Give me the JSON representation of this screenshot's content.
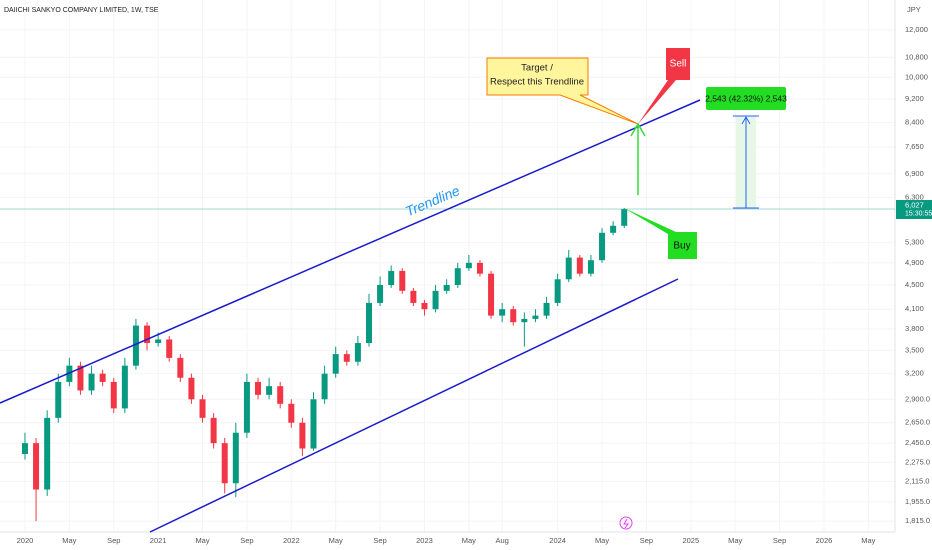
{
  "chart_data": {
    "type": "candlestick",
    "title": "DAIICHI SANKYO COMPANY LIMITED, 1W, TSE",
    "currency": "JPY",
    "log_scale": true,
    "up_color": "#089981",
    "down_color": "#f23645",
    "x": [
      0,
      1,
      2,
      3,
      4,
      5,
      6,
      7,
      8,
      9,
      10,
      11,
      12,
      13,
      14,
      15,
      16,
      17,
      18,
      19,
      20,
      21,
      22,
      23,
      24,
      25,
      26,
      27,
      28,
      29,
      30,
      31,
      32,
      33,
      34,
      35,
      36,
      37,
      38,
      39,
      40,
      41,
      42,
      43,
      44,
      45,
      46,
      47,
      48,
      49,
      50,
      51,
      52,
      53,
      54
    ],
    "open": [
      2350,
      2450,
      2050,
      2700,
      3100,
      3300,
      3000,
      3200,
      3100,
      2800,
      3300,
      3850,
      3600,
      3650,
      3400,
      3150,
      2900,
      2700,
      2450,
      2100,
      2550,
      3100,
      2950,
      3050,
      2850,
      2650,
      2400,
      2900,
      3200,
      3450,
      3350,
      3600,
      4200,
      4500,
      4750,
      4400,
      4200,
      4100,
      4400,
      4500,
      4800,
      4900,
      4700,
      4000,
      4100,
      3900,
      3950,
      4000,
      4200,
      4600,
      5000,
      4700,
      4950,
      5500,
      5650
    ],
    "high": [
      2550,
      2500,
      2780,
      3200,
      3400,
      3350,
      3300,
      3250,
      3150,
      3400,
      3950,
      3900,
      3750,
      3700,
      3450,
      3200,
      2950,
      2750,
      2500,
      2650,
      3200,
      3150,
      3150,
      3100,
      2900,
      2700,
      2980,
      3300,
      3550,
      3500,
      3700,
      4350,
      4650,
      4850,
      4800,
      4450,
      4250,
      4500,
      4600,
      4900,
      5050,
      4950,
      4750,
      4200,
      4150,
      4050,
      4100,
      4300,
      4700,
      5150,
      5050,
      5050,
      5600,
      5750,
      6050
    ],
    "low": [
      2300,
      1815,
      2000,
      2650,
      3050,
      2950,
      2950,
      3050,
      2750,
      2750,
      3250,
      3500,
      3550,
      3350,
      3100,
      2850,
      2650,
      2400,
      2020,
      1990,
      2500,
      2900,
      2900,
      2800,
      2600,
      2330,
      2380,
      2850,
      3150,
      3300,
      3300,
      3550,
      4150,
      4450,
      4350,
      4150,
      4000,
      4050,
      4350,
      4450,
      4750,
      4650,
      3950,
      3900,
      3850,
      3550,
      3900,
      3950,
      4150,
      4550,
      4650,
      4650,
      4900,
      5450,
      5600
    ],
    "close": [
      2450,
      2050,
      2700,
      3100,
      3300,
      3000,
      3200,
      3100,
      2800,
      3300,
      3850,
      3600,
      3650,
      3400,
      3150,
      2900,
      2700,
      2450,
      2100,
      2550,
      3100,
      2950,
      3050,
      2850,
      2650,
      2400,
      2900,
      3200,
      3450,
      3350,
      3600,
      4200,
      4500,
      4750,
      4400,
      4200,
      4100,
      4400,
      4500,
      4800,
      4900,
      4700,
      4000,
      4100,
      3900,
      3950,
      4000,
      4200,
      4600,
      5000,
      4700,
      4950,
      5500,
      5650,
      6027
    ],
    "price_label": "6,027",
    "countdown": "15:30:55",
    "xlim": [
      -2.25,
      78.4
    ],
    "xticks": [
      {
        "value": 0,
        "label": "2020"
      },
      {
        "value": 4,
        "label": "May"
      },
      {
        "value": 8,
        "label": "Sep"
      },
      {
        "value": 12,
        "label": "2021"
      },
      {
        "value": 16,
        "label": "May"
      },
      {
        "value": 20,
        "label": "Sep"
      },
      {
        "value": 24,
        "label": "2022"
      },
      {
        "value": 28,
        "label": "May"
      },
      {
        "value": 32,
        "label": "Sep"
      },
      {
        "value": 36,
        "label": "2023"
      },
      {
        "value": 40,
        "label": "May"
      },
      {
        "value": 43,
        "label": "Aug"
      },
      {
        "value": 48,
        "label": "2024"
      },
      {
        "value": 52,
        "label": "May"
      },
      {
        "value": 56,
        "label": "Sep"
      },
      {
        "value": 60,
        "label": "2025"
      },
      {
        "value": 64,
        "label": "May"
      },
      {
        "value": 68,
        "label": "Sep"
      },
      {
        "value": 72,
        "label": "2026"
      },
      {
        "value": 76,
        "label": "May"
      }
    ],
    "ylim": [
      1741,
      13460
    ],
    "yticks": [
      {
        "value": 12000,
        "label": "12,000"
      },
      {
        "value": 10800,
        "label": "10,800"
      },
      {
        "value": 10000,
        "label": "10,000"
      },
      {
        "value": 9200,
        "label": "9,200"
      },
      {
        "value": 8400,
        "label": "8,400"
      },
      {
        "value": 7650,
        "label": "7,650"
      },
      {
        "value": 6900,
        "label": "6,900"
      },
      {
        "value": 6300,
        "label": "6,300"
      },
      {
        "value": 5300,
        "label": "5,300"
      },
      {
        "value": 4900,
        "label": "4,900"
      },
      {
        "value": 4500,
        "label": "4,500"
      },
      {
        "value": 4100,
        "label": "4,100"
      },
      {
        "value": 3800,
        "label": "3,800"
      },
      {
        "value": 3500,
        "label": "3,500"
      },
      {
        "value": 3200,
        "label": "3,200"
      },
      {
        "value": 2900,
        "label": "2,900.0"
      },
      {
        "value": 2650,
        "label": "2,650.0"
      },
      {
        "value": 2450,
        "label": "2,450.0"
      },
      {
        "value": 2275,
        "label": "2,275.0"
      },
      {
        "value": 2115,
        "label": "2,115.0"
      },
      {
        "value": 1955,
        "label": "1,955.0"
      },
      {
        "value": 1815,
        "label": "1,815.0"
      }
    ],
    "annotations": {
      "trendline": "Trendline",
      "target": [
        "Target /",
        "Respect this Trendline"
      ],
      "sell": "Sell",
      "buy": "Buy",
      "measure": "2,543 (42.32%) 2,543"
    }
  }
}
